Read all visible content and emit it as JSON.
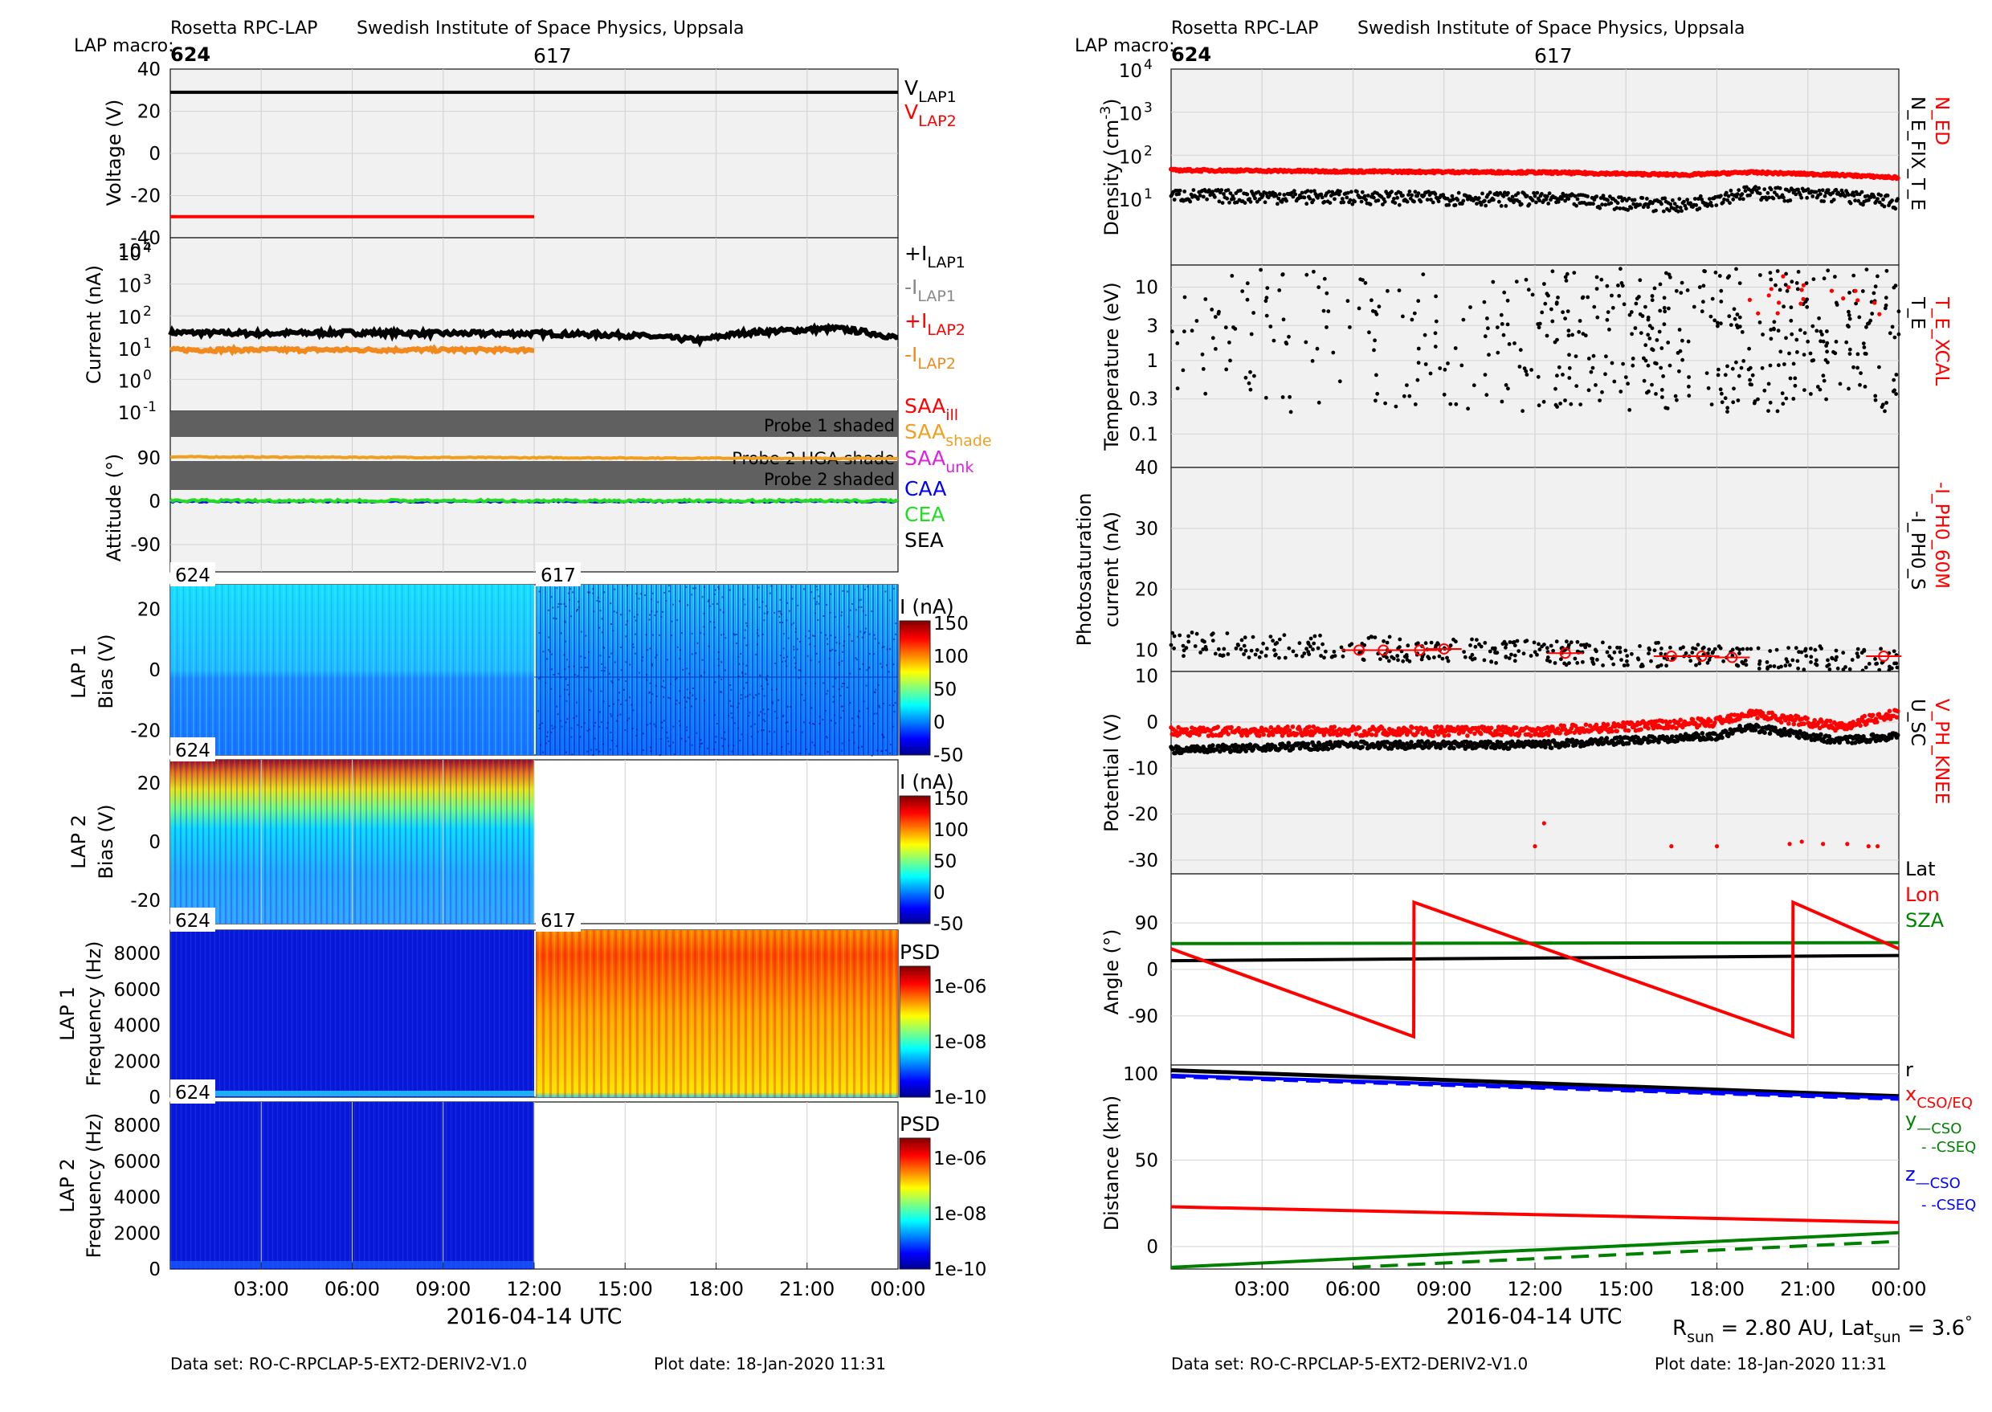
{
  "left": {
    "header": {
      "mission": "Rosetta RPC-LAP",
      "institute": "Swedish Institute of Space Physics, Uppsala",
      "macro_label": "LAP macro:",
      "macro_start": "624",
      "macro_mid": "617"
    },
    "xaxis": {
      "ticks": [
        "03:00",
        "06:00",
        "09:00",
        "12:00",
        "15:00",
        "18:00",
        "21:00",
        "00:00"
      ],
      "tick_hours": [
        3,
        6,
        9,
        12,
        15,
        18,
        21,
        24
      ],
      "title": "2016-04-14 UTC"
    },
    "footer": {
      "dataset": "Data set: RO-C-RPCLAP-5-EXT2-DERIV2-V1.0",
      "plotdate": "Plot date: 18-Jan-2020 11:31"
    },
    "voltage": {
      "ylabel": "Voltage (V)",
      "yticks": [
        "40",
        "20",
        "0",
        "-20",
        "-40"
      ],
      "ytick_values": [
        40,
        20,
        0,
        -20,
        -40
      ],
      "ylim": [
        -40,
        40
      ],
      "legend": [
        {
          "base": "V",
          "sub": "LAP1",
          "color": "#000000"
        },
        {
          "base": "V",
          "sub": "LAP2",
          "color": "#ff0000"
        }
      ]
    },
    "current": {
      "ylabel": "Current (nA)",
      "yticks": [
        {
          "base": "10",
          "exp": "4"
        },
        {
          "base": "10",
          "exp": "3"
        },
        {
          "base": "10",
          "exp": "2"
        },
        {
          "base": "10",
          "exp": "1"
        },
        {
          "base": "10",
          "exp": "0"
        },
        {
          "base": "10",
          "exp": "-1"
        }
      ],
      "ytick_exp": [
        4,
        3,
        2,
        1,
        0,
        -1
      ],
      "legend": [
        {
          "base": "+I",
          "sub": "LAP1",
          "color": "#000000"
        },
        {
          "base": "-I",
          "sub": "LAP1",
          "color": "#888888"
        },
        {
          "base": "+I",
          "sub": "LAP2",
          "color": "#ff0000"
        },
        {
          "base": "-I",
          "sub": "LAP2",
          "color": "#f08a1e"
        }
      ]
    },
    "attitude": {
      "ylabel": "Attitude (°)",
      "yticks": [
        "90",
        "0",
        "-90"
      ],
      "ytick_values": [
        90,
        0,
        -90
      ],
      "bands": {
        "probe1": "Probe 1 shaded",
        "hga": "Probe 2 HGA shade",
        "probe2": "Probe 2 shaded"
      },
      "legend": [
        {
          "base": "SAA",
          "sub": "ill",
          "color": "#ff0000"
        },
        {
          "base": "SAA",
          "sub": "shade",
          "color": "#f0a020"
        },
        {
          "base": "SAA",
          "sub": "unk",
          "color": "#e020e0"
        },
        {
          "base": "CAA",
          "sub": "",
          "color": "#0000ff"
        },
        {
          "base": "CEA",
          "sub": "",
          "color": "#22dd22"
        },
        {
          "base": "SEA",
          "sub": "",
          "color": "#000000"
        }
      ]
    },
    "lap1bias": {
      "ylabel1": "LAP 1",
      "ylabel2": "Bias (V)",
      "yticks": [
        "20",
        "0",
        "-20"
      ],
      "ytick_values": [
        20,
        0,
        -20
      ],
      "macro_a": "624",
      "macro_b": "617",
      "cbar_title": "I (nA)",
      "cbar_ticks": [
        "150",
        "100",
        "50",
        "0",
        "-50"
      ]
    },
    "lap2bias": {
      "ylabel1": "LAP 2",
      "ylabel2": "Bias (V)",
      "yticks": [
        "20",
        "0",
        "-20"
      ],
      "ytick_values": [
        20,
        0,
        -20
      ],
      "macro_a": "624",
      "cbar_title": "I (nA)",
      "cbar_ticks": [
        "150",
        "100",
        "50",
        "0",
        "-50"
      ]
    },
    "lap1freq": {
      "ylabel1": "LAP 1",
      "ylabel2": "Frequency (Hz)",
      "yticks": [
        "8000",
        "6000",
        "4000",
        "2000",
        "0"
      ],
      "ytick_values": [
        8000,
        6000,
        4000,
        2000,
        0
      ],
      "macro_a": "624",
      "macro_b": "617",
      "cbar_title": "PSD",
      "cbar_ticks": [
        "1e-06",
        "1e-08",
        "1e-10"
      ]
    },
    "lap2freq": {
      "ylabel1": "LAP 2",
      "ylabel2": "Frequency (Hz)",
      "yticks": [
        "8000",
        "6000",
        "4000",
        "2000",
        "0"
      ],
      "ytick_values": [
        8000,
        6000,
        4000,
        2000,
        0
      ],
      "macro_a": "624",
      "cbar_title": "PSD",
      "cbar_ticks": [
        "1e-06",
        "1e-08",
        "1e-10"
      ]
    }
  },
  "right": {
    "header": {
      "mission": "Rosetta RPC-LAP",
      "institute": "Swedish Institute of Space Physics, Uppsala",
      "macro_label": "LAP macro:",
      "macro_start": "624",
      "macro_mid": "617"
    },
    "xaxis": {
      "ticks": [
        "03:00",
        "06:00",
        "09:00",
        "12:00",
        "15:00",
        "18:00",
        "21:00",
        "00:00"
      ],
      "tick_hours": [
        3,
        6,
        9,
        12,
        15,
        18,
        21,
        24
      ],
      "title": "2016-04-14 UTC"
    },
    "footer": {
      "dataset": "Data set: RO-C-RPCLAP-5-EXT2-DERIV2-V1.0",
      "plotdate": "Plot date: 18-Jan-2020 11:31",
      "rsun_label": "R",
      "rsun_sub": "sun",
      "rsun_value": " = 2.80 AU, Lat",
      "lat_sub": "sun",
      "lat_value": " = 3.6",
      "deg": "°"
    },
    "density": {
      "ylabel": "Density (cm",
      "ylabel_exp": "-3",
      "ylabel_close": ")",
      "yticks": [
        {
          "base": "10",
          "exp": "4"
        },
        {
          "base": "10",
          "exp": "3"
        },
        {
          "base": "10",
          "exp": "2"
        },
        {
          "base": "10",
          "exp": "1"
        }
      ],
      "ytick_exp": [
        4,
        3,
        2,
        1
      ],
      "legend_red": "N_ED",
      "legend_black": "N_E_FIX_T_E"
    },
    "temperature": {
      "ylabel": "Temperature (eV)",
      "yticks": [
        "10",
        "3",
        "1",
        "0.3",
        "0.1"
      ],
      "ytick_values": [
        10,
        3,
        1,
        0.3,
        0.1
      ],
      "legend_black": "T_E",
      "legend_red": "T_E_XCAL"
    },
    "photo": {
      "ylabel1": "Photosaturation",
      "ylabel2": "current (nA)",
      "yticks": [
        "40",
        "30",
        "20",
        "10"
      ],
      "ytick_values": [
        40,
        30,
        20,
        10
      ],
      "legend_black": "-I_PH0_S",
      "legend_red": "-I_PH0_60M"
    },
    "potential": {
      "ylabel": "Potential (V)",
      "yticks": [
        "10",
        "0",
        "-10",
        "-20",
        "-30"
      ],
      "ytick_values": [
        10,
        0,
        -10,
        -20,
        -30
      ],
      "legend_black": "U_SC",
      "legend_red": "V_PH_KNEE"
    },
    "angle": {
      "ylabel": "Angle (°)",
      "yticks": [
        "90",
        "0",
        "-90"
      ],
      "ytick_values": [
        90,
        0,
        -90
      ],
      "legend": [
        {
          "label": "Lat",
          "color": "#000000"
        },
        {
          "label": "Lon",
          "color": "#ff0000"
        },
        {
          "label": "SZA",
          "color": "#008000"
        }
      ]
    },
    "distance": {
      "ylabel": "Distance (km)",
      "yticks": [
        "100",
        "50",
        "0"
      ],
      "ytick_values": [
        100,
        50,
        0
      ],
      "legend": [
        {
          "label": "r",
          "color": "#000000"
        },
        {
          "label": "x",
          "sub": "CSO/EQ",
          "color": "#ff0000"
        },
        {
          "label": "y",
          "sub": "—CSO",
          "color": "#008000"
        },
        {
          "label": "",
          "sub": "- -CSEQ",
          "color": "#008000"
        },
        {
          "label": "z",
          "sub": "—CSO",
          "color": "#0000ff"
        },
        {
          "label": "",
          "sub": "- -CSEQ",
          "color": "#0000ff"
        }
      ]
    }
  },
  "chart_data": [
    {
      "type": "line",
      "title": "Voltage",
      "xlabel": "2016-04-14 UTC",
      "ylabel": "Voltage (V)",
      "ylim": [
        -40,
        40
      ],
      "series": [
        {
          "name": "V_LAP1",
          "x": [
            0,
            24
          ],
          "values": [
            29,
            29
          ],
          "color": "#000000"
        },
        {
          "name": "V_LAP2",
          "x": [
            0,
            12
          ],
          "values": [
            -30,
            -30
          ],
          "color": "#ff0000"
        }
      ]
    },
    {
      "type": "line",
      "title": "Current",
      "ylabel": "Current (nA)",
      "yscale": "log",
      "ylim": [
        0.1,
        100000
      ],
      "series": [
        {
          "name": "+I_LAP1",
          "x": [
            0,
            3,
            6,
            9,
            12,
            15,
            17.5,
            19,
            22,
            24
          ],
          "values": [
            30,
            28,
            30,
            28,
            28,
            25,
            17,
            30,
            40,
            20
          ]
        },
        {
          "name": "-I_LAP2",
          "x": [
            0,
            6,
            12
          ],
          "values": [
            9,
            8,
            8
          ]
        }
      ]
    },
    {
      "type": "line",
      "title": "Attitude",
      "ylabel": "Attitude (°)",
      "series": [
        {
          "name": "SAA_shade",
          "x": [
            0,
            24
          ],
          "values": [
            92,
            88
          ]
        },
        {
          "name": "CEA",
          "x": [
            0,
            24
          ],
          "values": [
            1,
            1
          ]
        },
        {
          "name": "CAA",
          "x": [
            0,
            24
          ],
          "values": [
            -1,
            -1
          ]
        }
      ]
    },
    {
      "type": "line",
      "title": "Angle",
      "ylabel": "Angle (°)",
      "series": [
        {
          "name": "Lat",
          "x": [
            0,
            24
          ],
          "values": [
            17,
            27
          ]
        },
        {
          "name": "Lon",
          "x": [
            0,
            8,
            8.01,
            20.5,
            20.51,
            24
          ],
          "values": [
            40,
            -130,
            130,
            -130,
            130,
            40
          ]
        },
        {
          "name": "SZA",
          "x": [
            0,
            24
          ],
          "values": [
            50,
            52
          ]
        }
      ]
    },
    {
      "type": "line",
      "title": "Distance",
      "ylabel": "Distance (km)",
      "series": [
        {
          "name": "r",
          "x": [
            0,
            24
          ],
          "values": [
            102,
            87
          ]
        },
        {
          "name": "x",
          "x": [
            0,
            24
          ],
          "values": [
            23,
            14
          ]
        },
        {
          "name": "y CSO",
          "x": [
            0,
            24
          ],
          "values": [
            -12,
            8
          ]
        },
        {
          "name": "y CSEQ",
          "x": [
            6,
            24
          ],
          "values": [
            -12,
            3
          ]
        },
        {
          "name": "z CSO",
          "x": [
            0,
            24
          ],
          "values": [
            99,
            86
          ]
        }
      ]
    },
    {
      "type": "scatter",
      "title": "Density",
      "ylabel": "Density (cm-3)",
      "yscale": "log",
      "series": [
        {
          "name": "N_ED",
          "x": [
            0,
            6,
            12,
            17,
            19,
            22,
            24
          ],
          "values": [
            45,
            42,
            40,
            35,
            40,
            35,
            30
          ]
        },
        {
          "name": "N_E_FIX_T_E",
          "x": [
            0,
            6,
            12,
            17,
            19,
            22,
            24
          ],
          "values": [
            12,
            11,
            10,
            7,
            14,
            12,
            8
          ]
        }
      ]
    },
    {
      "type": "scatter",
      "title": "Potential",
      "ylabel": "Potential (V)",
      "series": [
        {
          "name": "V_PH_KNEE",
          "x": [
            0,
            6,
            12,
            18,
            19,
            22,
            24
          ],
          "values": [
            -2,
            -2,
            -2,
            0,
            2,
            -1,
            2
          ]
        },
        {
          "name": "U_SC",
          "x": [
            0,
            6,
            12,
            18,
            19,
            22,
            24
          ],
          "values": [
            -6,
            -5,
            -5,
            -3,
            -1,
            -4,
            -3
          ]
        }
      ]
    }
  ]
}
